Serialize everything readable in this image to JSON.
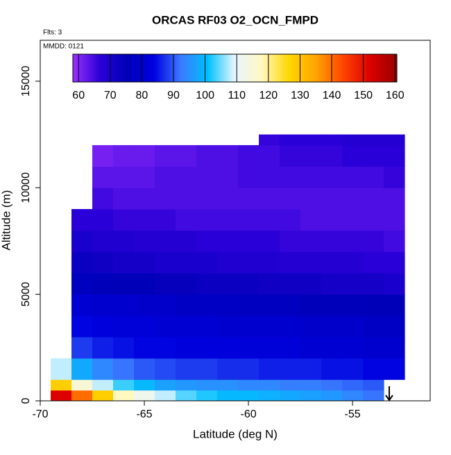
{
  "chart_data": {
    "type": "heatmap",
    "title": "ORCAS RF03 O2_OCN_FMPD",
    "flights_label": "Flts: 3",
    "date_label": "MMDD: 0121",
    "x_label": "Latitude (deg N)",
    "y_label": "Altitude (m)",
    "xlim": [
      -70,
      -51.27
    ],
    "ylim": [
      0,
      16920
    ],
    "xticks": [
      -70,
      -65,
      -60,
      -55
    ],
    "yticks": [
      0,
      5000,
      10000,
      15000
    ],
    "x_bins": [
      -69.5,
      -68.5,
      -67.5,
      -66.5,
      -65.5,
      -64.5,
      -63.5,
      -62.5,
      -61.5,
      -60.5,
      -59.5,
      -58.5,
      -57.5,
      -56.5,
      -55.5,
      -54.5,
      -53.5,
      -52.5
    ],
    "y_bins": [
      0,
      500,
      1000,
      2000,
      3000,
      4000,
      5000,
      6000,
      7000,
      8000,
      9000,
      10000,
      11000,
      12000,
      12500
    ],
    "values": [
      [
        152,
        140,
        128,
        118,
        112,
        108,
        104,
        102,
        100,
        100,
        99,
        98,
        97,
        96,
        94,
        92,
        null
      ],
      [
        128,
        115,
        108,
        103,
        100,
        97,
        96,
        95,
        95,
        94,
        94,
        93,
        93,
        92,
        91,
        90,
        null
      ],
      [
        108,
        98,
        94,
        92,
        90,
        89,
        88,
        88,
        87,
        87,
        86,
        86,
        86,
        85,
        85,
        84,
        84
      ],
      [
        null,
        88,
        86,
        85,
        84,
        84,
        83,
        83,
        83,
        82,
        82,
        82,
        81,
        81,
        81,
        80,
        80
      ],
      [
        null,
        84,
        83,
        82,
        82,
        81,
        81,
        81,
        80,
        80,
        80,
        80,
        79,
        79,
        79,
        78,
        78
      ],
      [
        null,
        81,
        80,
        80,
        79,
        79,
        78,
        78,
        78,
        77,
        77,
        77,
        76,
        76,
        76,
        75,
        75
      ],
      [
        null,
        77,
        76,
        75,
        75,
        74,
        74,
        73,
        73,
        73,
        72,
        72,
        72,
        71,
        71,
        71,
        70
      ],
      [
        null,
        73,
        72,
        71,
        71,
        70,
        70,
        70,
        69,
        69,
        69,
        68,
        68,
        68,
        68,
        67,
        67
      ],
      [
        null,
        70,
        69,
        69,
        68,
        68,
        68,
        67,
        67,
        67,
        67,
        66,
        66,
        66,
        66,
        66,
        65
      ],
      [
        null,
        67,
        67,
        66,
        66,
        66,
        65,
        65,
        65,
        65,
        65,
        65,
        64,
        64,
        64,
        64,
        64
      ],
      [
        null,
        null,
        65,
        64,
        64,
        64,
        64,
        64,
        64,
        64,
        64,
        64,
        64,
        64,
        64,
        64,
        64
      ],
      [
        null,
        null,
        63,
        63,
        63,
        64,
        64,
        64,
        64,
        65,
        65,
        65,
        65,
        65,
        65,
        65,
        66
      ],
      [
        null,
        null,
        61,
        62,
        62,
        63,
        63,
        64,
        64,
        65,
        65,
        66,
        66,
        66,
        67,
        67,
        67
      ],
      [
        null,
        null,
        null,
        null,
        null,
        null,
        null,
        null,
        null,
        null,
        66,
        67,
        67,
        67,
        68,
        68,
        68
      ]
    ],
    "clim": [
      58.2,
      160.6
    ],
    "cticks": [
      60,
      70,
      80,
      90,
      100,
      110,
      120,
      130,
      140,
      150,
      160
    ],
    "colorscale": [
      "#9b30ff",
      "#2a00d8",
      "#0000b8",
      "#0000e0",
      "#3a7aff",
      "#00c0ff",
      "#e8f6ff",
      "#fff8c0",
      "#ffd700",
      "#ffa500",
      "#ff4500",
      "#dd0000",
      "#9a0000"
    ]
  }
}
